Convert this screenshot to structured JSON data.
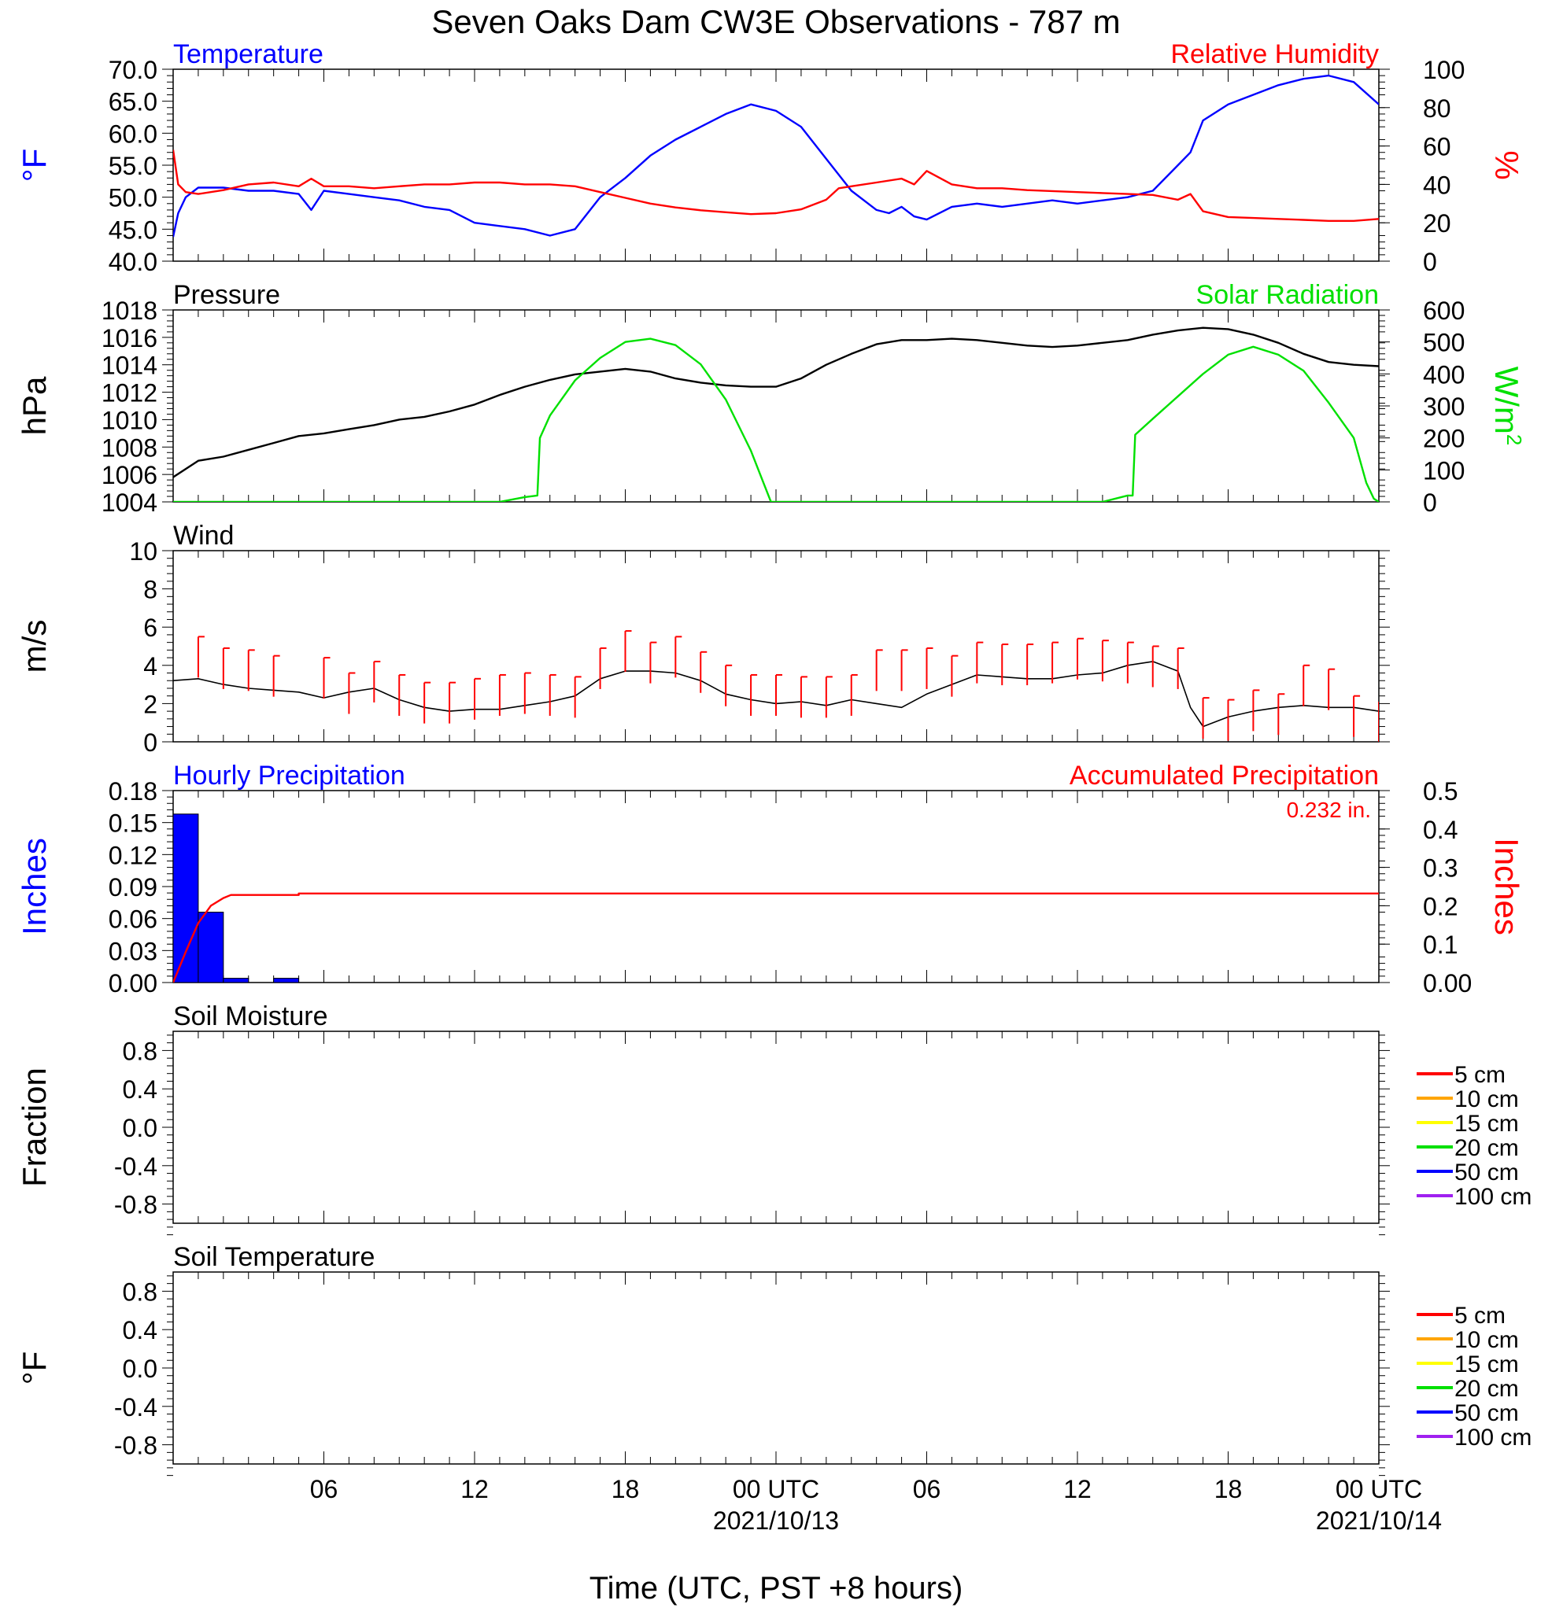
{
  "figure": {
    "title": "Seven Oaks Dam CW3E Observations - 787 m",
    "xlabel": "Time (UTC, PST +8 hours)"
  },
  "time_axis": {
    "range_hours": [
      0,
      48
    ],
    "ticks": [
      {
        "hour": 6,
        "label": "06",
        "sub": ""
      },
      {
        "hour": 12,
        "label": "12",
        "sub": ""
      },
      {
        "hour": 18,
        "label": "18",
        "sub": ""
      },
      {
        "hour": 24,
        "label": "00 UTC",
        "sub": "2021/10/13"
      },
      {
        "hour": 30,
        "label": "06",
        "sub": ""
      },
      {
        "hour": 36,
        "label": "12",
        "sub": ""
      },
      {
        "hour": 42,
        "label": "18",
        "sub": ""
      },
      {
        "hour": 48,
        "label": "00 UTC",
        "sub": "2021/10/14"
      }
    ]
  },
  "colors": {
    "blue": "#0000ff",
    "red": "#ff0000",
    "green": "#00e000",
    "black": "#000000",
    "orange": "#ffa500",
    "yellow": "#ffff00",
    "purple": "#a020f0"
  },
  "soil_legend": [
    {
      "label": "5 cm",
      "color": "#ff0000"
    },
    {
      "label": "10 cm",
      "color": "#ffa500"
    },
    {
      "label": "15 cm",
      "color": "#ffff00"
    },
    {
      "label": "20 cm",
      "color": "#00e000"
    },
    {
      "label": "50 cm",
      "color": "#0000ff"
    },
    {
      "label": "100 cm",
      "color": "#a020f0"
    }
  ],
  "chart_data": [
    {
      "id": "temp_rh",
      "type": "line",
      "title_left": "Temperature",
      "title_right": "Relative Humidity",
      "ylabel_left": "°F",
      "ylabel_right": "%",
      "ylim_left": [
        40,
        70
      ],
      "yticks_left": [
        "40.0",
        "45.0",
        "50.0",
        "55.0",
        "60.0",
        "65.0",
        "70.0"
      ],
      "ylim_right": [
        0,
        100
      ],
      "yticks_right": [
        "0",
        "20",
        "40",
        "60",
        "80",
        "100"
      ],
      "series": [
        {
          "name": "Temperature",
          "axis": "left",
          "color": "#0000ff",
          "x": [
            0,
            0.2,
            0.5,
            1,
            2,
            3,
            4,
            5,
            5.5,
            6,
            7,
            8,
            9,
            10,
            11,
            12,
            13,
            14,
            15,
            16,
            17,
            18,
            19,
            20,
            21,
            22,
            23,
            24,
            25,
            26,
            27,
            28,
            28.5,
            29,
            29.5,
            30,
            31,
            32,
            33,
            34,
            35,
            36,
            37,
            38,
            39,
            40,
            40.5,
            41,
            42,
            43,
            44,
            45,
            46,
            47,
            48
          ],
          "y": [
            43.8,
            47.5,
            50,
            51.5,
            51.5,
            51,
            51,
            50.5,
            48,
            51,
            50.5,
            50,
            49.5,
            48.5,
            48,
            46,
            45.5,
            45,
            44,
            45,
            50,
            53,
            56.5,
            59,
            61,
            63,
            64.5,
            63.5,
            61,
            56,
            51,
            48,
            47.5,
            48.5,
            47,
            46.5,
            48.5,
            49,
            48.5,
            49,
            49.5,
            49,
            49.5,
            50,
            51,
            55,
            57,
            62,
            64.5,
            66,
            67.5,
            68.5,
            69,
            68,
            64.5
          ]
        },
        {
          "name": "Relative Humidity",
          "axis": "right",
          "color": "#ff0000",
          "x": [
            0,
            0.2,
            0.5,
            1,
            2,
            3,
            4,
            5,
            5.5,
            6,
            7,
            8,
            9,
            10,
            11,
            12,
            13,
            14,
            15,
            16,
            17,
            18,
            19,
            20,
            21,
            22,
            23,
            24,
            25,
            26,
            26.5,
            27,
            28,
            29,
            29.5,
            30,
            31,
            32,
            33,
            34,
            35,
            36,
            37,
            38,
            39,
            40,
            40.5,
            41,
            42,
            43,
            44,
            45,
            46,
            47,
            48
          ],
          "y": [
            58,
            40,
            36,
            35,
            37,
            40,
            41,
            39,
            43,
            39,
            39,
            38,
            39,
            40,
            40,
            41,
            41,
            40,
            40,
            39,
            36,
            33,
            30,
            28,
            26.5,
            25.5,
            24.5,
            25,
            27,
            32,
            38,
            39,
            41,
            43,
            40,
            47,
            40,
            38,
            38,
            37,
            36.5,
            36,
            35.5,
            35,
            34.5,
            32,
            35,
            26,
            23,
            22.5,
            22,
            21.5,
            21,
            21,
            22
          ]
        }
      ]
    },
    {
      "id": "pressure_solar",
      "type": "line",
      "title_left": "Pressure",
      "title_right": "Solar Radiation",
      "ylabel_left": "hPa",
      "ylabel_right": "W/m",
      "ylabel_right_sup": "2",
      "ylim_left": [
        1004,
        1018
      ],
      "yticks_left": [
        "1004",
        "1006",
        "1008",
        "1010",
        "1012",
        "1014",
        "1016",
        "1018"
      ],
      "ylim_right": [
        0,
        600
      ],
      "yticks_right": [
        "0",
        "100",
        "200",
        "300",
        "400",
        "500",
        "600"
      ],
      "series": [
        {
          "name": "Pressure",
          "axis": "left",
          "color": "#000000",
          "x": [
            0,
            1,
            2,
            3,
            4,
            5,
            6,
            7,
            8,
            9,
            10,
            11,
            12,
            13,
            14,
            15,
            16,
            17,
            18,
            19,
            20,
            21,
            22,
            23,
            24,
            25,
            26,
            27,
            28,
            29,
            30,
            31,
            32,
            33,
            34,
            35,
            36,
            37,
            38,
            39,
            40,
            41,
            42,
            43,
            44,
            45,
            46,
            47,
            48
          ],
          "y": [
            1005.8,
            1007,
            1007.3,
            1007.8,
            1008.3,
            1008.8,
            1009,
            1009.3,
            1009.6,
            1010,
            1010.2,
            1010.6,
            1011.1,
            1011.8,
            1012.4,
            1012.9,
            1013.3,
            1013.5,
            1013.7,
            1013.5,
            1013,
            1012.7,
            1012.5,
            1012.4,
            1012.4,
            1013,
            1014,
            1014.8,
            1015.5,
            1015.8,
            1015.8,
            1015.9,
            1015.8,
            1015.6,
            1015.4,
            1015.3,
            1015.4,
            1015.6,
            1015.8,
            1016.2,
            1016.5,
            1016.7,
            1016.6,
            1016.2,
            1015.6,
            1014.8,
            1014.2,
            1014,
            1013.9
          ]
        },
        {
          "name": "Solar Radiation",
          "axis": "right",
          "color": "#00e000",
          "x": [
            0,
            13,
            14,
            14.5,
            14.6,
            15,
            16,
            17,
            18,
            19,
            20,
            21,
            22,
            23,
            23.5,
            23.8,
            24,
            37,
            38,
            38.2,
            38.3,
            39,
            40,
            41,
            42,
            43,
            44,
            45,
            46,
            47,
            47.5,
            47.8,
            48
          ],
          "y": [
            0,
            0,
            15,
            20,
            200,
            270,
            380,
            450,
            500,
            510,
            490,
            430,
            320,
            160,
            60,
            0,
            0,
            0,
            20,
            20,
            210,
            260,
            330,
            400,
            460,
            485,
            460,
            410,
            310,
            200,
            60,
            10,
            0
          ]
        }
      ]
    },
    {
      "id": "wind",
      "type": "line",
      "title_left": "Wind",
      "ylabel_left": "m/s",
      "ylim_left": [
        0,
        10
      ],
      "yticks_left": [
        "0",
        "2",
        "4",
        "6",
        "8",
        "10"
      ],
      "series": [
        {
          "name": "Wind",
          "axis": "left",
          "color": "#000000",
          "x": [
            0,
            1,
            2,
            3,
            4,
            5,
            6,
            7,
            8,
            9,
            10,
            11,
            12,
            13,
            14,
            15,
            16,
            17,
            18,
            19,
            20,
            21,
            22,
            23,
            24,
            25,
            26,
            27,
            28,
            29,
            30,
            31,
            32,
            33,
            34,
            35,
            36,
            37,
            38,
            39,
            40,
            40.5,
            41,
            42,
            43,
            44,
            45,
            46,
            47,
            48
          ],
          "y": [
            3.2,
            3.3,
            3.0,
            2.8,
            2.7,
            2.6,
            2.3,
            2.6,
            2.8,
            2.2,
            1.8,
            1.6,
            1.7,
            1.7,
            1.9,
            2.1,
            2.4,
            3.3,
            3.7,
            3.7,
            3.6,
            3.2,
            2.5,
            2.2,
            2.0,
            2.1,
            1.9,
            2.2,
            2.0,
            1.8,
            2.5,
            3.0,
            3.5,
            3.4,
            3.3,
            3.3,
            3.5,
            3.6,
            4.0,
            4.2,
            3.7,
            1.8,
            0.8,
            1.3,
            1.6,
            1.8,
            1.9,
            1.8,
            1.8,
            1.6
          ]
        }
      ],
      "gusts": {
        "color": "#ff0000",
        "x": [
          1,
          2,
          3,
          4,
          6,
          7,
          8,
          9,
          10,
          11,
          12,
          13,
          14,
          15,
          16,
          17,
          18,
          19,
          20,
          21,
          22,
          23,
          24,
          25,
          26,
          27,
          28,
          29,
          30,
          31,
          32,
          33,
          34,
          35,
          36,
          37,
          38,
          39,
          40,
          41,
          42,
          43,
          44,
          45,
          46,
          47,
          48
        ],
        "y": [
          5.5,
          4.9,
          4.8,
          4.5,
          4.4,
          3.6,
          4.2,
          3.5,
          3.1,
          3.1,
          3.3,
          3.5,
          3.6,
          3.5,
          3.4,
          4.9,
          5.8,
          5.2,
          5.5,
          4.7,
          4.0,
          3.5,
          3.5,
          3.4,
          3.4,
          3.5,
          4.8,
          4.8,
          4.9,
          4.5,
          5.2,
          5.1,
          5.1,
          5.2,
          5.4,
          5.3,
          5.2,
          5.0,
          4.9,
          2.3,
          2.2,
          2.7,
          2.5,
          4.0,
          3.8,
          2.4,
          2.1
        ]
      }
    },
    {
      "id": "precip",
      "type": "bar",
      "title_left": "Hourly Precipitation",
      "title_right": "Accumulated Precipitation",
      "annotation": "0.232 in.",
      "ylabel_left": "Inches",
      "ylabel_right": "Inches",
      "ylim_left": [
        0,
        0.18
      ],
      "yticks_left": [
        "0.00",
        "0.03",
        "0.06",
        "0.09",
        "0.12",
        "0.15",
        "0.18"
      ],
      "ylim_right": [
        0,
        0.5
      ],
      "yticks_right": [
        "0.00",
        "0.1",
        "0.2",
        "0.3",
        "0.4",
        "0.5"
      ],
      "bars": {
        "name": "Hourly Precipitation",
        "color": "#0000ff",
        "hour_start": [
          0,
          1,
          2,
          4
        ],
        "values": [
          0.158,
          0.066,
          0.004,
          0.004
        ]
      },
      "series": [
        {
          "name": "Accumulated Precipitation",
          "axis": "right",
          "color": "#ff0000",
          "x": [
            0,
            0.5,
            1,
            1.5,
            2,
            2.3,
            3,
            4,
            5,
            5,
            48
          ],
          "y": [
            0,
            0.08,
            0.155,
            0.2,
            0.22,
            0.228,
            0.228,
            0.228,
            0.228,
            0.232,
            0.232
          ]
        }
      ]
    },
    {
      "id": "soil_moisture",
      "type": "line",
      "title_left": "Soil Moisture",
      "ylabel_left": "Fraction",
      "ylim_left": [
        -1,
        1
      ],
      "yticks_left": [
        "-0.8",
        "-0.4",
        "0.0",
        "0.4",
        "0.8"
      ],
      "series": []
    },
    {
      "id": "soil_temperature",
      "type": "line",
      "title_left": "Soil Temperature",
      "ylabel_left": "°F",
      "ylim_left": [
        -1,
        1
      ],
      "yticks_left": [
        "-0.8",
        "-0.4",
        "0.0",
        "0.4",
        "0.8"
      ],
      "series": []
    }
  ]
}
